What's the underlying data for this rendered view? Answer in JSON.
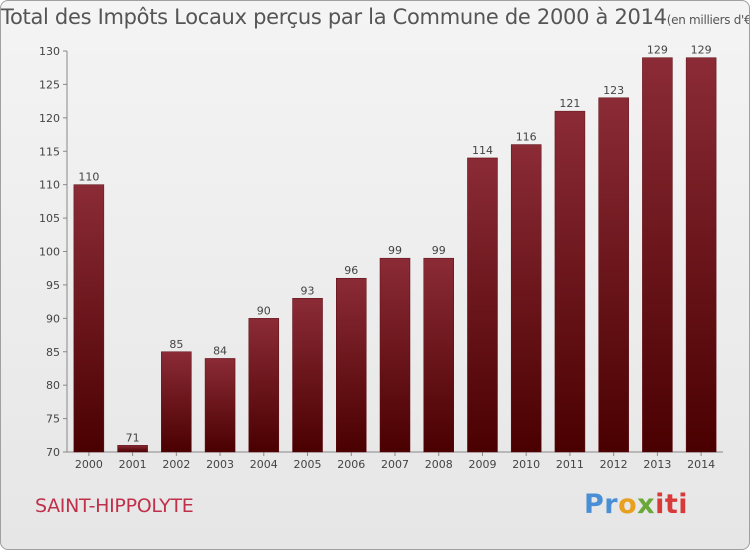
{
  "chart_data": {
    "type": "bar",
    "title": "Total des Impôts Locaux perçus par la Commune de 2000 à 2014",
    "title_unit": "(en milliers d'€)",
    "categories": [
      "2000",
      "2001",
      "2002",
      "2003",
      "2004",
      "2005",
      "2006",
      "2007",
      "2008",
      "2009",
      "2010",
      "2011",
      "2012",
      "2013",
      "2014"
    ],
    "values": [
      110,
      71,
      85,
      84,
      90,
      93,
      96,
      99,
      99,
      114,
      116,
      121,
      123,
      129,
      129
    ],
    "ylim": [
      70,
      130
    ],
    "yticks": [
      70,
      75,
      80,
      85,
      90,
      95,
      100,
      105,
      110,
      115,
      120,
      125,
      130
    ],
    "xlabel": "",
    "ylabel": "",
    "grid": false,
    "bar_color_top": "#8b2b36",
    "bar_color_bottom": "#4a0000"
  },
  "footer": {
    "commune": "SAINT-HIPPOLYTE",
    "brand_parts": [
      "Pr",
      "o",
      "x",
      "iti"
    ]
  }
}
